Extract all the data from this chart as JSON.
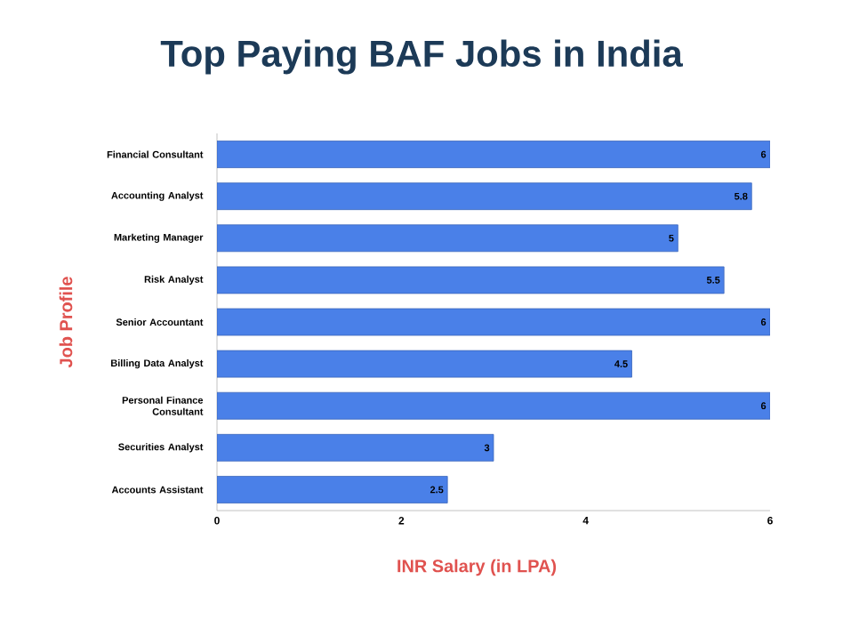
{
  "chart_data": {
    "type": "bar",
    "orientation": "horizontal",
    "title": "Top Paying BAF Jobs in India",
    "xlabel": "INR Salary (in LPA)",
    "ylabel": "Job Profile",
    "categories": [
      "Financial Consultant",
      "Accounting Analyst",
      "Marketing Manager",
      "Risk Analyst",
      "Senior Accountant",
      "Billing Data Analyst",
      "Personal Finance Consultant",
      "Securities Analyst",
      "Accounts Assistant"
    ],
    "values": [
      6,
      5.8,
      5,
      5.5,
      6,
      4.5,
      6,
      3,
      2.5
    ],
    "color": "#4a80e8",
    "data_labels": true,
    "xlim": [
      0,
      6
    ],
    "xticks": [
      0,
      2,
      4,
      6
    ],
    "grid": false
  }
}
